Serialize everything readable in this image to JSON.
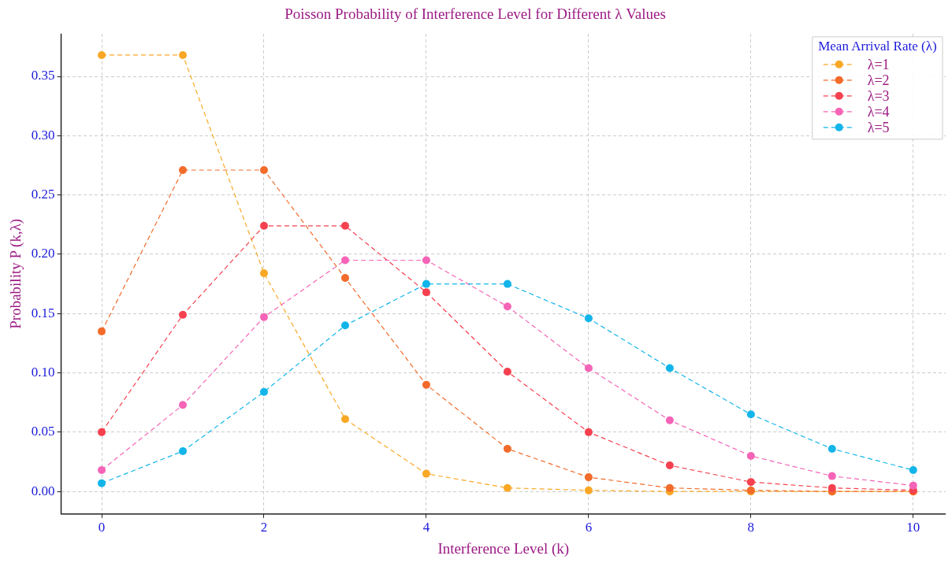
{
  "chart_data": {
    "type": "line",
    "title": "Poisson Probability of Interference Level for Different λ Values",
    "xlabel": "Interference Level (k)",
    "ylabel": "Probability P (k,λ)",
    "legend_title": "Mean Arrival Rate (λ)",
    "x": [
      0,
      1,
      2,
      3,
      4,
      5,
      6,
      7,
      8,
      9,
      10
    ],
    "series": [
      {
        "name": "λ=1",
        "color": "#f9a825",
        "values": [
          0.368,
          0.368,
          0.184,
          0.061,
          0.015,
          0.003,
          0.001,
          0.0,
          0.0,
          0.0,
          0.0
        ]
      },
      {
        "name": "λ=2",
        "color": "#f26b2a",
        "values": [
          0.135,
          0.271,
          0.271,
          0.18,
          0.09,
          0.036,
          0.012,
          0.003,
          0.001,
          0.0,
          0.0
        ]
      },
      {
        "name": "λ=3",
        "color": "#f5414f",
        "values": [
          0.05,
          0.149,
          0.224,
          0.224,
          0.168,
          0.101,
          0.05,
          0.022,
          0.008,
          0.003,
          0.001
        ]
      },
      {
        "name": "λ=4",
        "color": "#f564b7",
        "values": [
          0.018,
          0.073,
          0.147,
          0.195,
          0.195,
          0.156,
          0.104,
          0.06,
          0.03,
          0.013,
          0.005
        ]
      },
      {
        "name": "λ=5",
        "color": "#12b5ea",
        "values": [
          0.007,
          0.034,
          0.084,
          0.14,
          0.175,
          0.175,
          0.146,
          0.104,
          0.065,
          0.036,
          0.018
        ]
      }
    ],
    "xlim": [
      -0.5,
      10.4
    ],
    "xticks": [
      0,
      2,
      4,
      6,
      8,
      10
    ],
    "ylim": [
      -0.019,
      0.386
    ],
    "yticks": [
      {
        "value": 0,
        "label": "0.00"
      },
      {
        "value": 0.05,
        "label": "0.05"
      },
      {
        "value": 0.1,
        "label": "0.10"
      },
      {
        "value": 0.15,
        "label": "0.15"
      },
      {
        "value": 0.2,
        "label": "0.20"
      },
      {
        "value": 0.25,
        "label": "0.25"
      },
      {
        "value": 0.3,
        "label": "0.30"
      },
      {
        "value": 0.35,
        "label": "0.35"
      }
    ],
    "grid": true,
    "legend": "top right",
    "marker": "circle",
    "line_style": "dashed"
  }
}
